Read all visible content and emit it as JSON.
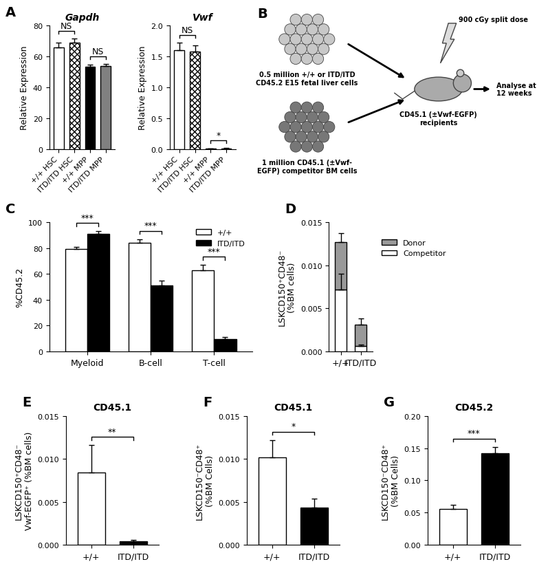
{
  "chart_data": [
    {
      "type": "bar",
      "panel": "A",
      "title": "Gapdh",
      "ylabel": "Relative Expression",
      "categories": [
        "+/+ HSC",
        "ITD/ITD HSC",
        "+/+ MPP",
        "ITD/ITD MPP"
      ],
      "values": [
        66,
        69,
        53.5,
        54
      ],
      "errors": [
        3,
        2.5,
        1,
        1
      ],
      "colors": [
        "#ffffff",
        "#ffffff",
        "#000000",
        "#808080"
      ],
      "ylim": [
        0,
        80
      ],
      "yticks": [
        0,
        20,
        40,
        60,
        80
      ],
      "annotations": [
        {
          "text": "NS",
          "categories": [
            "+/+ HSC",
            "ITD/ITD HSC"
          ]
        },
        {
          "text": "NS",
          "categories": [
            "+/+ MPP",
            "ITD/ITD MPP"
          ]
        }
      ]
    },
    {
      "type": "bar",
      "title": "Vwf",
      "ylabel": "Relative Expression",
      "categories": [
        "+/+ HSC",
        "ITD/ITD HSC",
        "+/+ MPP",
        "ITD/ITD MPP"
      ],
      "values": [
        1.6,
        1.58,
        0.005,
        0.01
      ],
      "errors": [
        0.12,
        0.1,
        0.002,
        0.003
      ],
      "colors": [
        "#ffffff",
        "#ffffff",
        "#000000",
        "#808080"
      ],
      "ylim": [
        0.0,
        2.0
      ],
      "yticks": [
        0.0,
        0.5,
        1.0,
        1.5,
        2.0
      ],
      "annotations": [
        {
          "text": "NS",
          "categories": [
            "+/+ HSC",
            "ITD/ITD HSC"
          ]
        },
        {
          "text": "*",
          "categories": [
            "+/+ MPP",
            "ITD/ITD MPP"
          ]
        }
      ]
    },
    {
      "type": "bar",
      "panel": "C",
      "ylabel": "%CD45.2",
      "categories": [
        "Myeloid",
        "B-cell",
        "T-cell"
      ],
      "series": [
        {
          "name": "+/+",
          "color": "#ffffff",
          "values": [
            79.5,
            84,
            63
          ],
          "errors": [
            1.5,
            3,
            4
          ]
        },
        {
          "name": "ITD/ITD",
          "color": "#000000",
          "values": [
            91,
            51,
            9.5
          ],
          "errors": [
            2,
            4,
            1.5
          ]
        }
      ],
      "ylim": [
        0,
        100
      ],
      "yticks": [
        0,
        20,
        40,
        60,
        80,
        100
      ],
      "legend": "upper right",
      "annotations": [
        {
          "text": "***",
          "categories": [
            "Myeloid"
          ]
        },
        {
          "text": "***",
          "categories": [
            "B-cell"
          ]
        },
        {
          "text": "***",
          "categories": [
            "T-cell"
          ]
        }
      ]
    },
    {
      "type": "bar",
      "panel": "D",
      "stacked": true,
      "ylabel": "LSKCD150⁺CD48⁻\n(%BM cells)",
      "categories": [
        "+/+",
        "ITD/ITD"
      ],
      "series": [
        {
          "name": "Competitor",
          "color": "#ffffff",
          "values": [
            0.0072,
            0.0006
          ],
          "errors": [
            0.0018,
            0.0002
          ]
        },
        {
          "name": "Donor",
          "color": "#999999",
          "values": [
            0.0055,
            0.0025
          ],
          "errors": [
            0.001,
            0.0007
          ]
        }
      ],
      "ylim": [
        0,
        0.015
      ],
      "yticks": [
        {
          "value": 0,
          "label": "0.000"
        },
        {
          "value": 0.005,
          "label": "0.005"
        },
        {
          "value": 0.01,
          "label": "0.010"
        },
        {
          "value": 0.015,
          "label": "0.015"
        }
      ],
      "legend": "right"
    },
    {
      "type": "bar",
      "panel": "E",
      "title": "CD45.1",
      "ylabel": "LSKCD150⁺CD48⁻\nVwf-EGFP⁺ (%BM cells)",
      "categories": [
        "+/+",
        "ITD/ITD"
      ],
      "values": [
        0.0084,
        0.0004
      ],
      "errors": [
        0.0032,
        0.0002
      ],
      "colors": [
        "#ffffff",
        "#000000"
      ],
      "ylim": [
        0,
        0.015
      ],
      "yticks": [
        {
          "value": 0,
          "label": "0.000"
        },
        {
          "value": 0.005,
          "label": "0.005"
        },
        {
          "value": 0.01,
          "label": "0.010"
        },
        {
          "value": 0.015,
          "label": "0.015"
        }
      ],
      "annotations": [
        {
          "text": "**",
          "categories": [
            "+/+",
            "ITD/ITD"
          ]
        }
      ]
    },
    {
      "type": "bar",
      "panel": "F",
      "title": "CD45.1",
      "ylabel": "LSKCD150⁻CD48⁺\n(%BM Cells)",
      "categories": [
        "+/+",
        "ITD/ITD"
      ],
      "values": [
        0.0102,
        0.0043
      ],
      "errors": [
        0.002,
        0.0011
      ],
      "colors": [
        "#ffffff",
        "#000000"
      ],
      "ylim": [
        0,
        0.015
      ],
      "yticks": [
        {
          "value": 0,
          "label": "0.000"
        },
        {
          "value": 0.005,
          "label": "0.005"
        },
        {
          "value": 0.01,
          "label": "0.010"
        },
        {
          "value": 0.015,
          "label": "0.015"
        }
      ],
      "annotations": [
        {
          "text": "*",
          "categories": [
            "+/+",
            "ITD/ITD"
          ]
        }
      ]
    },
    {
      "type": "bar",
      "panel": "G",
      "title": "CD45.2",
      "ylabel": "LSKCD150⁻CD48⁺\n(%BM Cells)",
      "categories": [
        "+/+",
        "ITD/ITD"
      ],
      "values": [
        0.056,
        0.142
      ],
      "errors": [
        0.006,
        0.01
      ],
      "colors": [
        "#ffffff",
        "#000000"
      ],
      "ylim": [
        0,
        0.2
      ],
      "yticks": [
        {
          "value": 0,
          "label": "0.00"
        },
        {
          "value": 0.05,
          "label": "0.05"
        },
        {
          "value": 0.1,
          "label": "0.10"
        },
        {
          "value": 0.15,
          "label": "0.15"
        },
        {
          "value": 0.2,
          "label": "0.20"
        }
      ],
      "annotations": [
        {
          "text": "***",
          "categories": [
            "+/+",
            "ITD/ITD"
          ]
        }
      ]
    }
  ],
  "diagram": {
    "panel": "B",
    "donor": "0.5 million +/+ or ITD/ITD\nCD45.2 E15 fetal liver cells",
    "competitor": "1 million CD45.1 (±Vwf-\nEGFP) competitor BM cells",
    "irradiation": "900 cGy split dose",
    "recipients": "CD45.1 (±Vwf-EGFP)\nrecipients",
    "analysis": "Analyse at\n12 weeks"
  }
}
